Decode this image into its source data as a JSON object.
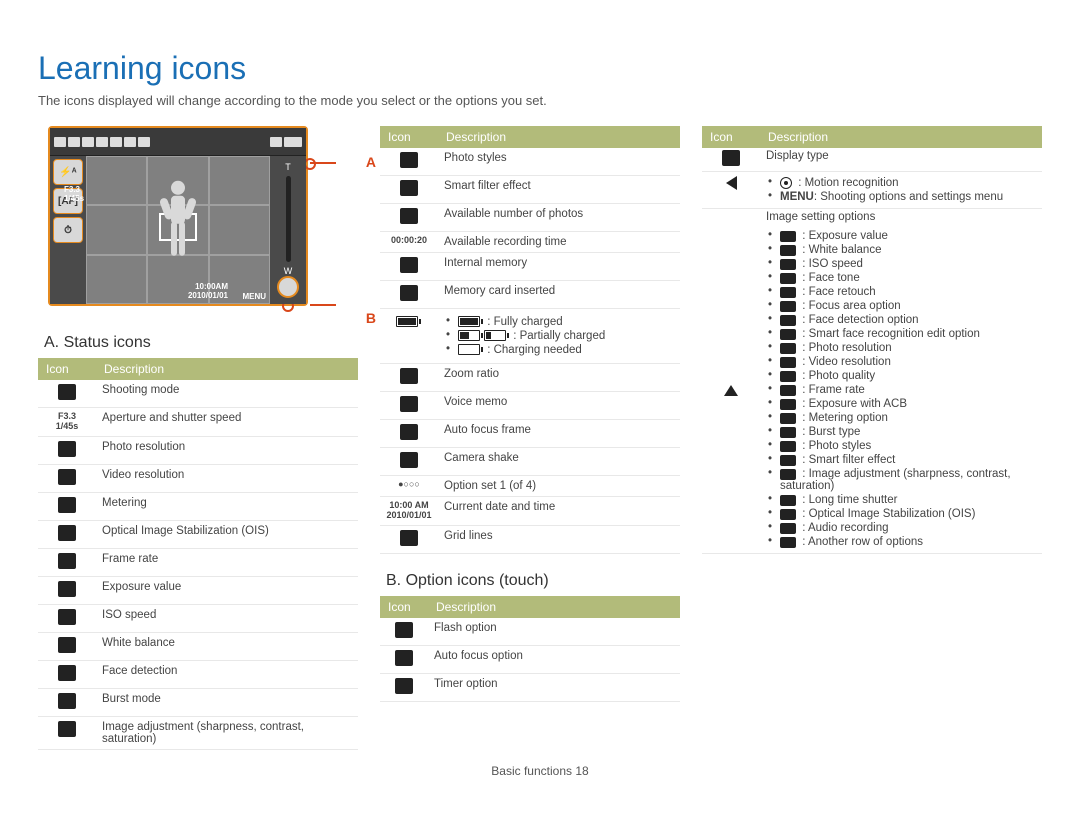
{
  "title": "Learning icons",
  "subtitle": "The icons displayed will change according to the mode you select or the options you set.",
  "diagram": {
    "label_a": "A",
    "label_b": "B",
    "aperture": "F3.3",
    "shutter": "1/45s",
    "time": "10:00AM",
    "date": "2010/01/01",
    "menu": "MENU"
  },
  "sectionA_title": "A. Status icons",
  "sectionB_title": "B. Option icons (touch)",
  "header_icon": "Icon",
  "header_desc": "Description",
  "tableA": [
    {
      "d": "Shooting mode"
    },
    {
      "i": "F3.3\n1/45s",
      "d": "Aperture and shutter speed"
    },
    {
      "d": "Photo resolution"
    },
    {
      "d": "Video resolution"
    },
    {
      "d": "Metering"
    },
    {
      "d": "Optical Image Stabilization (OIS)"
    },
    {
      "d": "Frame rate"
    },
    {
      "d": "Exposure value"
    },
    {
      "d": "ISO speed"
    },
    {
      "d": "White balance"
    },
    {
      "d": "Face detection"
    },
    {
      "d": "Burst mode"
    },
    {
      "d": "Image adjustment (sharpness, contrast, saturation)"
    }
  ],
  "tableCol2Top": [
    {
      "d": "Photo styles"
    },
    {
      "d": "Smart filter effect"
    },
    {
      "d": "Available number of photos"
    },
    {
      "i": "00:00:20",
      "d": "Available recording time"
    },
    {
      "d": "Internal memory"
    },
    {
      "d": "Memory card inserted"
    }
  ],
  "battery": {
    "full": ": Fully charged",
    "partial": ": Partially charged",
    "need": ": Charging needed"
  },
  "tableCol2After": [
    {
      "d": "Zoom ratio"
    },
    {
      "d": "Voice memo"
    },
    {
      "d": "Auto focus frame"
    },
    {
      "d": "Camera shake"
    },
    {
      "i": "●○○○",
      "d": "Option set 1 (of 4)"
    },
    {
      "i": "10:00 AM\n2010/01/01",
      "d": "Current date and time"
    },
    {
      "d": "Grid lines"
    }
  ],
  "tableB": [
    {
      "d": "Flash option"
    },
    {
      "d": "Auto focus option"
    },
    {
      "d": "Timer option"
    }
  ],
  "col3_row1_desc": "Display type",
  "col3_left_items": [
    ": Motion recognition",
    ": Shooting options and settings menu"
  ],
  "col3_left_menu": "MENU",
  "image_setting_header": "Image setting options",
  "image_setting_items": [
    ": Exposure value",
    ": White balance",
    ": ISO speed",
    ": Face tone",
    ": Face retouch",
    ": Focus area option",
    ": Face detection option",
    ": Smart face recognition edit option",
    ": Photo resolution",
    ": Video resolution",
    ": Photo quality",
    ": Frame rate",
    ": Exposure with ACB",
    ": Metering option",
    ": Burst type",
    ": Photo styles",
    ": Smart filter effect",
    ": Image adjustment (sharpness, contrast, saturation)",
    ": Long time shutter",
    ": Optical Image Stabilization (OIS)",
    ": Audio recording",
    ": Another row of options"
  ],
  "footer": "Basic functions  18"
}
